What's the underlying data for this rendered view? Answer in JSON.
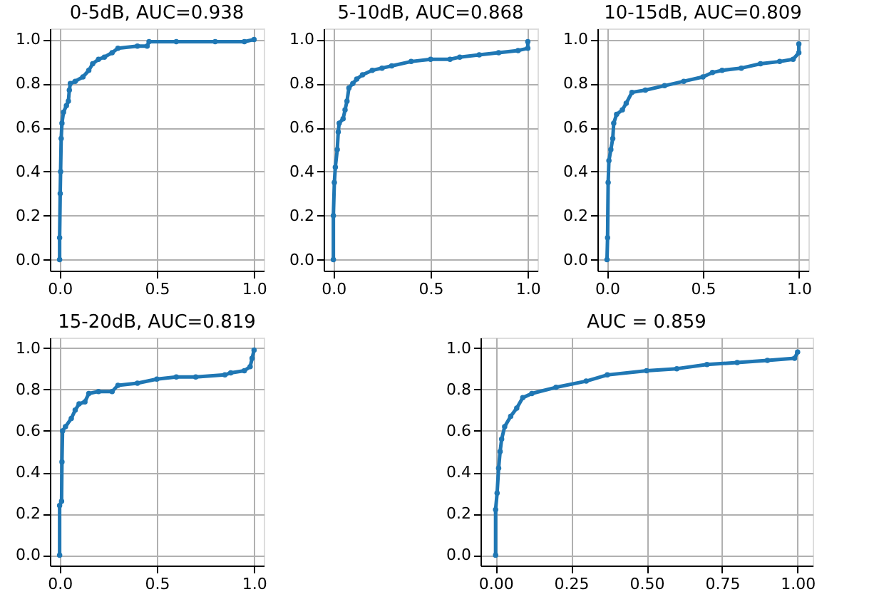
{
  "chart_data": [
    {
      "type": "line",
      "title": "0-5dB, AUC=0.938",
      "marker": "circle",
      "line_style": "solid",
      "grid": true,
      "xlim": [
        -0.05,
        1.05
      ],
      "ylim": [
        -0.05,
        1.05
      ],
      "xticks": [
        {
          "value": 0,
          "label": "0.0"
        },
        {
          "value": 0.5,
          "label": "0.5"
        },
        {
          "value": 1,
          "label": "1.0"
        }
      ],
      "yticks": [
        {
          "value": 0,
          "label": "0.0"
        },
        {
          "value": 0.2,
          "label": "0.2"
        },
        {
          "value": 0.4,
          "label": "0.4"
        },
        {
          "value": 0.6,
          "label": "0.6"
        },
        {
          "value": 0.8,
          "label": "0.8"
        },
        {
          "value": 1,
          "label": "1.0"
        }
      ],
      "series": [
        {
          "color": "#1f77b4",
          "x": [
            0,
            0,
            0.003,
            0.005,
            0.008,
            0.012,
            0.02,
            0.035,
            0.045,
            0.05,
            0.055,
            0.08,
            0.12,
            0.15,
            0.17,
            0.2,
            0.23,
            0.27,
            0.3,
            0.4,
            0.45,
            0.46,
            0.6,
            0.8,
            0.95,
            1
          ],
          "values": [
            0,
            0.1,
            0.3,
            0.4,
            0.55,
            0.62,
            0.67,
            0.7,
            0.72,
            0.77,
            0.8,
            0.81,
            0.83,
            0.86,
            0.89,
            0.91,
            0.92,
            0.94,
            0.96,
            0.97,
            0.97,
            0.99,
            0.99,
            0.99,
            0.99,
            1
          ]
        }
      ]
    },
    {
      "type": "line",
      "title": "5-10dB, AUC=0.868",
      "marker": "circle",
      "line_style": "solid",
      "grid": true,
      "xlim": [
        -0.05,
        1.05
      ],
      "ylim": [
        -0.05,
        1.05
      ],
      "xticks": [
        {
          "value": 0,
          "label": "0.0"
        },
        {
          "value": 0.5,
          "label": "0.5"
        },
        {
          "value": 1,
          "label": "1.0"
        }
      ],
      "yticks": [
        {
          "value": 0,
          "label": "0.0"
        },
        {
          "value": 0.2,
          "label": "0.2"
        },
        {
          "value": 0.4,
          "label": "0.4"
        },
        {
          "value": 0.6,
          "label": "0.6"
        },
        {
          "value": 0.8,
          "label": "0.8"
        },
        {
          "value": 1,
          "label": "1.0"
        }
      ],
      "series": [
        {
          "color": "#1f77b4",
          "x": [
            0,
            0,
            0.005,
            0.01,
            0.02,
            0.025,
            0.03,
            0.05,
            0.06,
            0.07,
            0.08,
            0.1,
            0.12,
            0.15,
            0.2,
            0.25,
            0.3,
            0.4,
            0.5,
            0.6,
            0.65,
            0.75,
            0.85,
            0.95,
            1,
            1
          ],
          "values": [
            0,
            0.2,
            0.35,
            0.42,
            0.5,
            0.58,
            0.62,
            0.64,
            0.68,
            0.72,
            0.78,
            0.8,
            0.82,
            0.84,
            0.86,
            0.87,
            0.88,
            0.9,
            0.91,
            0.91,
            0.92,
            0.93,
            0.94,
            0.95,
            0.96,
            0.99
          ]
        }
      ]
    },
    {
      "type": "line",
      "title": "10-15dB, AUC=0.809",
      "marker": "circle",
      "line_style": "solid",
      "grid": true,
      "xlim": [
        -0.05,
        1.05
      ],
      "ylim": [
        -0.05,
        1.05
      ],
      "xticks": [
        {
          "value": 0,
          "label": "0.0"
        },
        {
          "value": 0.5,
          "label": "0.5"
        },
        {
          "value": 1,
          "label": "1.0"
        }
      ],
      "yticks": [
        {
          "value": 0,
          "label": "0.0"
        },
        {
          "value": 0.2,
          "label": "0.2"
        },
        {
          "value": 0.4,
          "label": "0.4"
        },
        {
          "value": 0.6,
          "label": "0.6"
        },
        {
          "value": 0.8,
          "label": "0.8"
        },
        {
          "value": 1,
          "label": "1.0"
        }
      ],
      "series": [
        {
          "color": "#1f77b4",
          "x": [
            0,
            0.003,
            0.006,
            0.01,
            0.02,
            0.03,
            0.035,
            0.05,
            0.08,
            0.1,
            0.13,
            0.2,
            0.3,
            0.4,
            0.5,
            0.55,
            0.6,
            0.7,
            0.8,
            0.9,
            0.97,
            1,
            1
          ],
          "values": [
            0,
            0.1,
            0.35,
            0.45,
            0.5,
            0.55,
            0.62,
            0.66,
            0.68,
            0.71,
            0.76,
            0.77,
            0.79,
            0.81,
            0.83,
            0.85,
            0.86,
            0.87,
            0.89,
            0.9,
            0.91,
            0.94,
            0.98
          ]
        }
      ]
    },
    {
      "type": "line",
      "title": "15-20dB, AUC=0.819",
      "marker": "circle",
      "line_style": "solid",
      "grid": true,
      "xlim": [
        -0.05,
        1.05
      ],
      "ylim": [
        -0.05,
        1.05
      ],
      "xticks": [
        {
          "value": 0,
          "label": "0.0"
        },
        {
          "value": 0.5,
          "label": "0.5"
        },
        {
          "value": 1,
          "label": "1.0"
        }
      ],
      "yticks": [
        {
          "value": 0,
          "label": "0.0"
        },
        {
          "value": 0.2,
          "label": "0.2"
        },
        {
          "value": 0.4,
          "label": "0.4"
        },
        {
          "value": 0.6,
          "label": "0.6"
        },
        {
          "value": 0.8,
          "label": "0.8"
        },
        {
          "value": 1,
          "label": "1.0"
        }
      ],
      "series": [
        {
          "color": "#1f77b4",
          "x": [
            0,
            0,
            0.01,
            0.012,
            0.015,
            0.03,
            0.06,
            0.08,
            0.1,
            0.13,
            0.15,
            0.2,
            0.27,
            0.3,
            0.4,
            0.5,
            0.6,
            0.7,
            0.85,
            0.88,
            0.95,
            0.98,
            0.99,
            1
          ],
          "values": [
            0,
            0.24,
            0.26,
            0.45,
            0.6,
            0.62,
            0.66,
            0.7,
            0.73,
            0.74,
            0.78,
            0.79,
            0.79,
            0.82,
            0.83,
            0.85,
            0.86,
            0.86,
            0.87,
            0.88,
            0.89,
            0.91,
            0.95,
            0.99
          ]
        }
      ]
    },
    {
      "type": "line",
      "title": "AUC = 0.859",
      "marker": "circle",
      "line_style": "solid",
      "grid": true,
      "xlim": [
        -0.05,
        1.05
      ],
      "ylim": [
        -0.05,
        1.05
      ],
      "xticks": [
        {
          "value": 0,
          "label": "0.00"
        },
        {
          "value": 0.25,
          "label": "0.25"
        },
        {
          "value": 0.5,
          "label": "0.50"
        },
        {
          "value": 0.75,
          "label": "0.75"
        },
        {
          "value": 1,
          "label": "1.00"
        }
      ],
      "yticks": [
        {
          "value": 0,
          "label": "0.0"
        },
        {
          "value": 0.2,
          "label": "0.2"
        },
        {
          "value": 0.4,
          "label": "0.4"
        },
        {
          "value": 0.6,
          "label": "0.6"
        },
        {
          "value": 0.8,
          "label": "0.8"
        },
        {
          "value": 1,
          "label": "1.0"
        }
      ],
      "series": [
        {
          "color": "#1f77b4",
          "x": [
            0,
            0,
            0.005,
            0.01,
            0.015,
            0.02,
            0.03,
            0.05,
            0.07,
            0.09,
            0.12,
            0.2,
            0.3,
            0.37,
            0.5,
            0.6,
            0.7,
            0.8,
            0.9,
            0.99,
            1
          ],
          "values": [
            0,
            0.22,
            0.3,
            0.42,
            0.5,
            0.56,
            0.62,
            0.67,
            0.71,
            0.76,
            0.78,
            0.81,
            0.84,
            0.87,
            0.89,
            0.9,
            0.92,
            0.93,
            0.94,
            0.95,
            0.98
          ]
        }
      ]
    }
  ]
}
